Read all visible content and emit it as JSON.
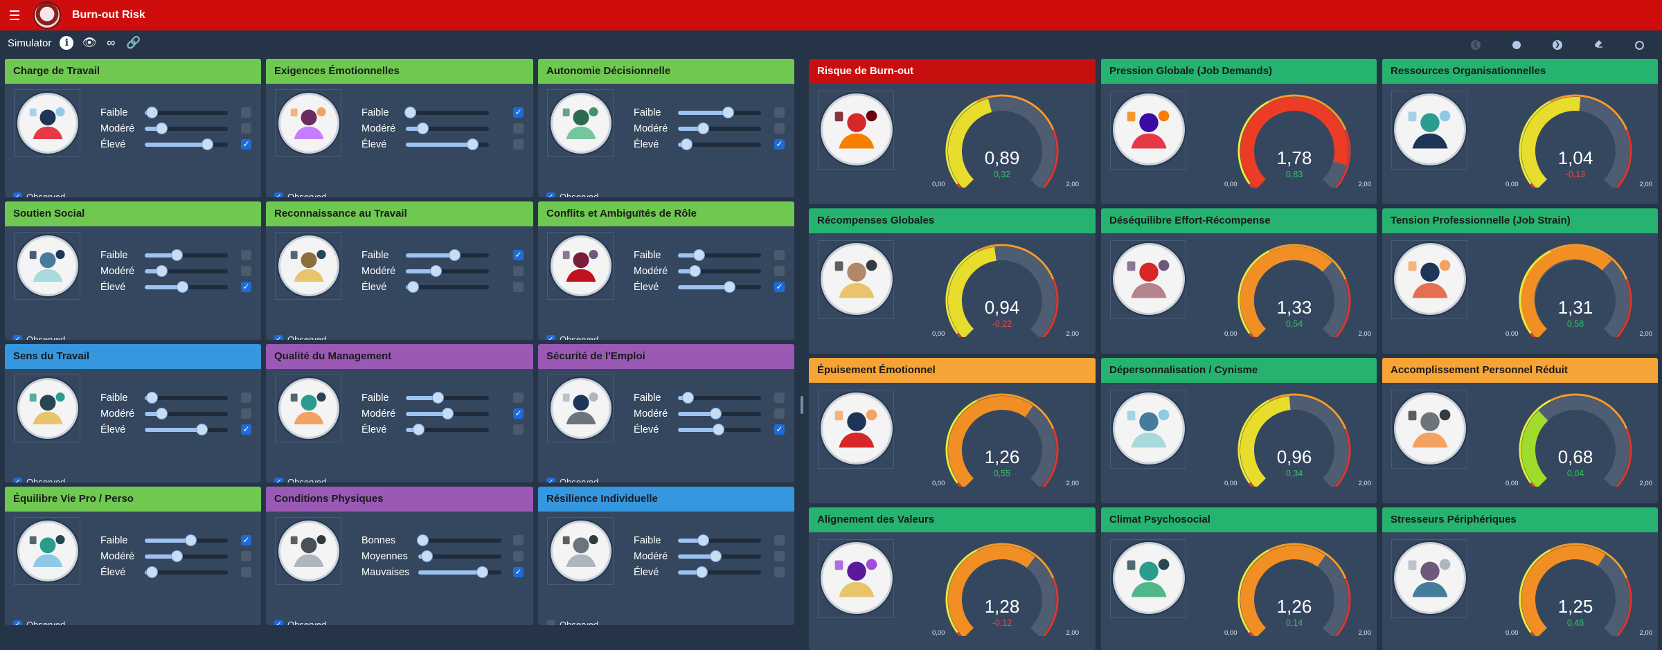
{
  "app": {
    "title": "Burn-out Risk"
  },
  "toolbar": {
    "label": "Simulator",
    "info_icon": "i",
    "view_icon": "👁",
    "loop_icon": "∞",
    "link_icon": "🔗"
  },
  "nav": {
    "back": "❮",
    "next": "❯"
  },
  "observed_label": "Observed",
  "levels": {
    "low": "Faible",
    "mid": "Modéré",
    "high": "Élevé"
  },
  "conditions_levels": {
    "low": "Bonnes",
    "mid": "Moyennes",
    "high": "Mauvaises"
  },
  "factors": [
    {
      "title": "Charge de Travail",
      "color": "green",
      "icon": "workload-gauge-icon",
      "values": [
        0.08,
        0.2,
        0.75
      ],
      "checked": 2,
      "observed": true
    },
    {
      "title": "Exigences Émotionnelles",
      "color": "green",
      "icon": "emotional-woman-icon",
      "values": [
        0.05,
        0.2,
        0.8
      ],
      "checked": 0,
      "observed": true
    },
    {
      "title": "Autonomie Décisionnelle",
      "color": "green",
      "icon": "decision-arrows-icon",
      "values": [
        0.6,
        0.3,
        0.1
      ],
      "checked": 2,
      "observed": true
    },
    {
      "title": "Soutien Social",
      "color": "green",
      "icon": "team-support-icon",
      "values": [
        0.38,
        0.2,
        0.45
      ],
      "checked": 2,
      "observed": true
    },
    {
      "title": "Reconnaissance au Travail",
      "color": "green",
      "icon": "medal-icon",
      "values": [
        0.58,
        0.36,
        0.08
      ],
      "checked": 0,
      "observed": true
    },
    {
      "title": "Conflits et Ambiguïtés de Rôle",
      "color": "green",
      "icon": "role-conflict-icon",
      "values": [
        0.25,
        0.2,
        0.62
      ],
      "checked": 2,
      "observed": true
    },
    {
      "title": "Sens du Travail",
      "color": "blue",
      "icon": "meaning-head-icon",
      "values": [
        0.08,
        0.2,
        0.68
      ],
      "checked": 2,
      "observed": true
    },
    {
      "title": "Qualité du Management",
      "color": "purple",
      "icon": "manager-icon",
      "values": [
        0.38,
        0.5,
        0.15
      ],
      "checked": 1,
      "observed": true
    },
    {
      "title": "Sécurité de l'Emploi",
      "color": "purple",
      "icon": "job-security-icon",
      "values": [
        0.12,
        0.45,
        0.48
      ],
      "checked": 2,
      "observed": true
    },
    {
      "title": "Équilibre Vie Pro / Perso",
      "color": "green",
      "icon": "balance-meditation-icon",
      "values": [
        0.55,
        0.38,
        0.08
      ],
      "checked": 0,
      "observed": true
    },
    {
      "title": "Conditions Physiques",
      "color": "purple",
      "icon": "physical-conditions-icon",
      "levels": "conditions",
      "values": [
        0.05,
        0.1,
        0.77
      ],
      "checked": 2,
      "observed": true
    },
    {
      "title": "Résilience Individuelle",
      "color": "blue",
      "icon": "resilience-spring-icon",
      "values": [
        0.3,
        0.45,
        0.28
      ],
      "checked": -1,
      "observed": false
    }
  ],
  "outputs": [
    {
      "title": "Risque de Burn-out",
      "color": "red",
      "icon": "burnout-icon",
      "value": 0.89,
      "value_text": "0,89",
      "delta": "0,32",
      "sign": "pos"
    },
    {
      "title": "Pression Globale (Job Demands)",
      "color": "teal",
      "icon": "pressure-icon",
      "value": 1.78,
      "value_text": "1,78",
      "delta": "0,83",
      "sign": "pos"
    },
    {
      "title": "Ressources Organisationnelles",
      "color": "teal",
      "icon": "resources-icon",
      "value": 1.04,
      "value_text": "1,04",
      "delta": "-0,13",
      "sign": "neg"
    },
    {
      "title": "Récompenses Globales",
      "color": "teal",
      "icon": "rewards-key-icon",
      "value": 0.94,
      "value_text": "0,94",
      "delta": "-0,22",
      "sign": "neg"
    },
    {
      "title": "Déséquilibre Effort-Récompense",
      "color": "teal",
      "icon": "imbalance-icon",
      "value": 1.33,
      "value_text": "1,33",
      "delta": "0,54",
      "sign": "pos"
    },
    {
      "title": "Tension Professionnelle (Job Strain)",
      "color": "teal",
      "icon": "strain-icon",
      "value": 1.31,
      "value_text": "1,31",
      "delta": "0,58",
      "sign": "pos"
    },
    {
      "title": "Épuisement Émotionnel",
      "color": "orange",
      "icon": "exhaustion-icon",
      "value": 1.26,
      "value_text": "1,26",
      "delta": "0,55",
      "sign": "pos"
    },
    {
      "title": "Dépersonnalisation / Cynisme",
      "color": "teal",
      "icon": "cynicism-icon",
      "value": 0.96,
      "value_text": "0,96",
      "delta": "0,34",
      "sign": "pos"
    },
    {
      "title": "Accomplissement Personnel Réduit",
      "color": "orange",
      "icon": "accomplishment-icon",
      "value": 0.68,
      "value_text": "0,68",
      "delta": "0,04",
      "sign": "pos"
    },
    {
      "title": "Alignement des Valeurs",
      "color": "teal",
      "icon": "values-compass-icon",
      "value": 1.28,
      "value_text": "1,28",
      "delta": "-0,12",
      "sign": "neg"
    },
    {
      "title": "Climat Psychosocial",
      "color": "teal",
      "icon": "climate-icon",
      "value": 1.26,
      "value_text": "1,26",
      "delta": "0,14",
      "sign": "pos"
    },
    {
      "title": "Stresseurs Périphériques",
      "color": "teal",
      "icon": "stressors-icon",
      "value": 1.25,
      "value_text": "1,25",
      "delta": "0,48",
      "sign": "pos"
    }
  ],
  "gauge": {
    "min_label": "0,00",
    "max_label": "2,00",
    "min": 0,
    "max": 2
  },
  "colors": {
    "green": "#6fc950",
    "blue": "#3497e0",
    "purple": "#9b59b6",
    "red": "#c80f0f",
    "teal": "#25b36f",
    "orange": "#f6a435"
  }
}
